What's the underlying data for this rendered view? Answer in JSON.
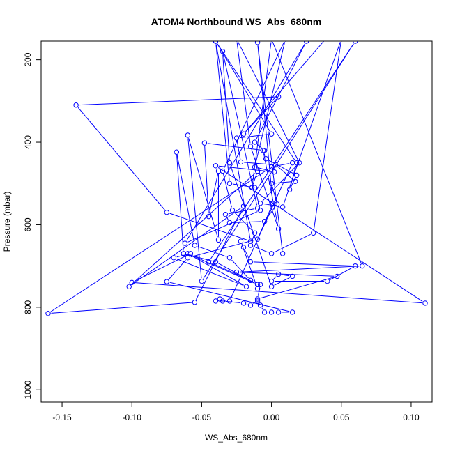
{
  "chart_data": {
    "type": "line",
    "title": "ATOM4 Northbound WS_Abs_680nm",
    "xlabel": "WS_Abs_680nm",
    "ylabel": "Pressure (mbar)",
    "xlim": [
      -0.165,
      0.115
    ],
    "ylim": [
      1030,
      155
    ],
    "y_inverted": true,
    "grid": false,
    "markers": "open-circle",
    "colors": {
      "series": "#0000ff",
      "axis": "#000000",
      "background": "#ffffff"
    },
    "x_ticks": [
      {
        "value": -0.15,
        "label": "-0.15"
      },
      {
        "value": -0.1,
        "label": "-0.10"
      },
      {
        "value": -0.05,
        "label": "-0.05"
      },
      {
        "value": 0.0,
        "label": "0.00"
      },
      {
        "value": 0.05,
        "label": "0.05"
      },
      {
        "value": 0.1,
        "label": "0.10"
      }
    ],
    "y_ticks": [
      {
        "value": 200,
        "label": "200"
      },
      {
        "value": 400,
        "label": "400"
      },
      {
        "value": 600,
        "label": "600"
      },
      {
        "value": 800,
        "label": "800"
      },
      {
        "value": 1000,
        "label": "1000"
      }
    ],
    "series": [
      {
        "points": [
          [
            0.04,
            145
          ],
          [
            -0.02,
            380
          ],
          [
            0.005,
            290
          ],
          [
            -0.14,
            310
          ],
          [
            -0.075,
            570
          ],
          [
            -0.015,
            640
          ],
          [
            -0.04,
            155
          ],
          [
            -0.03,
            500
          ],
          [
            -0.012,
            510
          ],
          [
            -0.008,
            565
          ],
          [
            -0.062,
            645
          ],
          [
            0.025,
            155
          ],
          [
            -0.012,
            400
          ],
          [
            -0.005,
            420
          ],
          [
            -0.048,
            402
          ],
          [
            -0.045,
            580
          ],
          [
            -0.038,
            470
          ],
          [
            -0.038,
            637
          ],
          [
            -0.06,
            383
          ],
          [
            -0.05,
            737
          ],
          [
            0.06,
            155
          ],
          [
            -0.045,
            690
          ],
          [
            -0.015,
            735
          ],
          [
            -0.03,
            680
          ],
          [
            -0.055,
            650
          ],
          [
            -0.068,
            424
          ],
          [
            -0.063,
            670
          ],
          [
            -0.04,
            690
          ],
          [
            -0.01,
            745
          ],
          [
            -0.06,
            670
          ],
          [
            -0.018,
            750
          ],
          [
            -0.07,
            680
          ],
          [
            -0.058,
            670
          ],
          [
            -0.1,
            740
          ],
          [
            0.11,
            790
          ],
          [
            -0.04,
            457
          ],
          [
            0.002,
            472
          ],
          [
            -0.012,
            460
          ],
          [
            0.01,
            150
          ],
          [
            -0.035,
            470
          ],
          [
            -0.028,
            565
          ],
          [
            -0.012,
            620
          ],
          [
            -0.015,
            650
          ],
          [
            0.0,
            670
          ],
          [
            0.03,
            620
          ],
          [
            0.05,
            150
          ],
          [
            0.008,
            557
          ],
          [
            -0.008,
            548
          ],
          [
            0.02,
            450
          ],
          [
            -0.025,
            150
          ],
          [
            -0.015,
            410
          ],
          [
            0.005,
            610
          ],
          [
            -0.006,
            420
          ],
          [
            -0.004,
            440
          ],
          [
            0.018,
            480
          ],
          [
            0.013,
            515
          ],
          [
            0.018,
            450
          ],
          [
            -0.04,
            155
          ],
          [
            0.0,
            380
          ],
          [
            -0.025,
            390
          ],
          [
            -0.022,
            448
          ],
          [
            0.003,
            455
          ],
          [
            0.017,
            495
          ],
          [
            0.0,
            500
          ],
          [
            0.004,
            550
          ],
          [
            -0.005,
            592
          ],
          [
            -0.03,
            595
          ],
          [
            -0.033,
            575
          ],
          [
            -0.01,
            560
          ],
          [
            -0.035,
            180
          ],
          [
            -0.03,
            450
          ],
          [
            0.0,
            750
          ],
          [
            0.015,
            725
          ],
          [
            0.005,
            720
          ],
          [
            0.0,
            737
          ],
          [
            0.04,
            737
          ],
          [
            0.06,
            700
          ],
          [
            -0.015,
            690
          ],
          [
            -0.02,
            655
          ],
          [
            -0.022,
            640
          ],
          [
            -0.01,
            755
          ],
          [
            -0.008,
            745
          ],
          [
            -0.01,
            780
          ],
          [
            0.047,
            725
          ],
          [
            -0.025,
            715
          ],
          [
            0.065,
            700
          ],
          [
            0.0,
            150
          ],
          [
            -0.014,
            510
          ],
          [
            -0.01,
            470
          ],
          [
            -0.102,
            750
          ],
          [
            -0.02,
            555
          ],
          [
            -0.055,
            788
          ],
          [
            -0.16,
            815
          ],
          [
            0.0,
            460
          ],
          [
            0.015,
            450
          ],
          [
            -0.03,
            785
          ],
          [
            -0.04,
            785
          ],
          [
            -0.037,
            780
          ],
          [
            -0.035,
            785
          ],
          [
            -0.02,
            790
          ],
          [
            -0.015,
            795
          ],
          [
            -0.01,
            785
          ],
          [
            -0.008,
            795
          ],
          [
            -0.005,
            812
          ],
          [
            0.0,
            812
          ],
          [
            0.005,
            812
          ],
          [
            0.015,
            812
          ],
          [
            -0.075,
            738
          ],
          [
            -0.06,
            680
          ],
          [
            -0.01,
            635
          ],
          [
            0.001,
            548
          ],
          [
            -0.01,
            158
          ],
          [
            0.008,
            670
          ]
        ]
      }
    ]
  }
}
